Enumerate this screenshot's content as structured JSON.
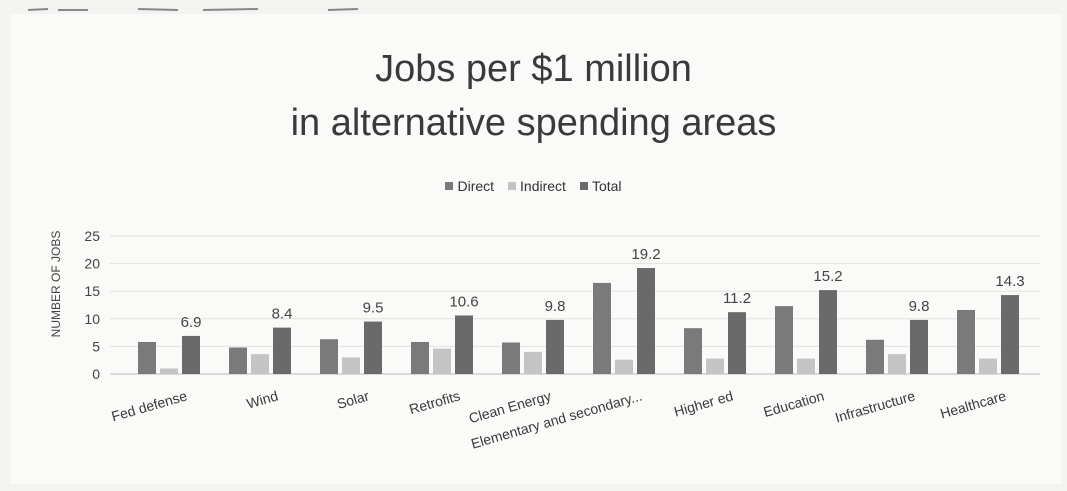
{
  "chart_data": {
    "type": "bar",
    "title_lines": [
      "Jobs per $1 million",
      "in alternative spending areas"
    ],
    "ylabel": "NUMBER OF JOBS",
    "xlabel": "",
    "ylim": [
      0,
      25
    ],
    "yticks": [
      0,
      5,
      10,
      15,
      20,
      25
    ],
    "grid": true,
    "legend_position": "top-center",
    "categories": [
      "Fed defense",
      "Wind",
      "Solar",
      "Retrofits",
      "Clean Energy",
      "Elementary and secondary...",
      "Higher ed",
      "Education",
      "Infrastructure",
      "Healthcare"
    ],
    "series": [
      {
        "name": "Direct",
        "color": "#7a7a7a",
        "values": [
          5.8,
          4.8,
          6.3,
          5.8,
          5.7,
          16.5,
          8.3,
          12.3,
          6.2,
          11.6
        ]
      },
      {
        "name": "Indirect",
        "color": "#c4c4c4",
        "values": [
          1.0,
          3.6,
          3.0,
          4.6,
          4.0,
          2.6,
          2.8,
          2.8,
          3.6,
          2.8
        ]
      },
      {
        "name": "Total",
        "color": "#6a6a6a",
        "values": [
          6.9,
          8.4,
          9.5,
          10.6,
          9.8,
          19.2,
          11.2,
          15.2,
          9.8,
          14.3
        ]
      }
    ],
    "total_labels": [
      "6.9",
      "8.4",
      "9.5",
      "10.6",
      "9.8",
      "19.2",
      "11.2",
      "15.2",
      "9.8",
      "14.3"
    ]
  }
}
